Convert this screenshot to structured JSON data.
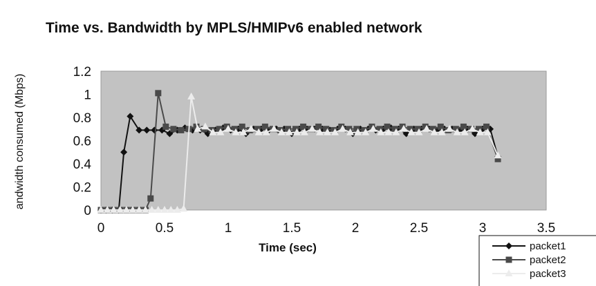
{
  "chart_data": {
    "type": "line",
    "title": "Time vs. Bandwidth by MPLS/HMIPv6 enabled network",
    "xlabel": "Time (sec)",
    "ylabel": "andwidth consumed (Mbps)",
    "xlim": [
      0,
      3.5
    ],
    "ylim": [
      0,
      1.2
    ],
    "xticks": [
      "0",
      "0.5",
      "1",
      "1.5",
      "2",
      "2.5",
      "3",
      "3.5"
    ],
    "yticks": [
      "0",
      "0.2",
      "0.4",
      "0.6",
      "0.8",
      "1",
      "1.2"
    ],
    "grid": false,
    "legend_position": "bottom-right",
    "plot_background": "#c2c2c2",
    "series": [
      {
        "name": "packet1",
        "color": "#111111",
        "marker": "diamond",
        "x": [
          0,
          0.04,
          0.09,
          0.14,
          0.18,
          0.23,
          0.3,
          0.36,
          0.42,
          0.48,
          0.54,
          0.6,
          0.66,
          0.72,
          0.78,
          0.84,
          0.9,
          0.96,
          1.02,
          1.08,
          1.14,
          1.2,
          1.26,
          1.32,
          1.38,
          1.44,
          1.5,
          1.56,
          1.62,
          1.68,
          1.74,
          1.8,
          1.86,
          1.92,
          1.98,
          2.04,
          2.1,
          2.16,
          2.22,
          2.28,
          2.34,
          2.4,
          2.46,
          2.52,
          2.58,
          2.64,
          2.7,
          2.76,
          2.82,
          2.88,
          2.94,
          3.0,
          3.06,
          3.12
        ],
        "y": [
          0,
          0,
          0,
          0,
          0.5,
          0.81,
          0.69,
          0.69,
          0.69,
          0.69,
          0.66,
          0.69,
          0.71,
          0.69,
          0.69,
          0.66,
          0.69,
          0.71,
          0.69,
          0.7,
          0.66,
          0.7,
          0.7,
          0.69,
          0.7,
          0.7,
          0.66,
          0.7,
          0.7,
          0.7,
          0.7,
          0.69,
          0.7,
          0.7,
          0.66,
          0.7,
          0.7,
          0.69,
          0.7,
          0.71,
          0.7,
          0.66,
          0.7,
          0.7,
          0.7,
          0.69,
          0.7,
          0.7,
          0.69,
          0.7,
          0.66,
          0.7,
          0.7,
          0.46
        ]
      },
      {
        "name": "packet2",
        "color": "#4a4a4a",
        "marker": "square",
        "x": [
          0,
          0.05,
          0.1,
          0.15,
          0.2,
          0.25,
          0.3,
          0.35,
          0.39,
          0.45,
          0.51,
          0.57,
          0.63,
          0.69,
          0.75,
          0.81,
          0.87,
          0.93,
          0.99,
          1.05,
          1.11,
          1.17,
          1.23,
          1.29,
          1.35,
          1.41,
          1.47,
          1.53,
          1.59,
          1.65,
          1.71,
          1.77,
          1.83,
          1.89,
          1.95,
          2.01,
          2.07,
          2.13,
          2.19,
          2.25,
          2.31,
          2.37,
          2.43,
          2.49,
          2.55,
          2.61,
          2.67,
          2.73,
          2.79,
          2.85,
          2.91,
          2.97,
          3.03,
          3.12
        ],
        "y": [
          0,
          0,
          0,
          0,
          0,
          0,
          0,
          0,
          0.1,
          1.01,
          0.72,
          0.7,
          0.69,
          0.7,
          0.72,
          0.7,
          0.69,
          0.7,
          0.72,
          0.7,
          0.72,
          0.69,
          0.7,
          0.72,
          0.7,
          0.69,
          0.7,
          0.7,
          0.72,
          0.7,
          0.72,
          0.7,
          0.69,
          0.72,
          0.7,
          0.7,
          0.69,
          0.72,
          0.7,
          0.72,
          0.7,
          0.72,
          0.7,
          0.7,
          0.72,
          0.7,
          0.72,
          0.69,
          0.7,
          0.72,
          0.7,
          0.7,
          0.72,
          0.44
        ]
      },
      {
        "name": "packet3",
        "color": "#ececec",
        "marker": "triangle",
        "x": [
          0,
          0.05,
          0.1,
          0.15,
          0.2,
          0.25,
          0.3,
          0.35,
          0.4,
          0.45,
          0.5,
          0.55,
          0.6,
          0.65,
          0.71,
          0.76,
          0.82,
          0.88,
          0.94,
          1.0,
          1.06,
          1.12,
          1.18,
          1.24,
          1.3,
          1.36,
          1.42,
          1.48,
          1.54,
          1.6,
          1.66,
          1.72,
          1.78,
          1.84,
          1.9,
          1.96,
          2.02,
          2.08,
          2.14,
          2.2,
          2.26,
          2.32,
          2.38,
          2.44,
          2.5,
          2.56,
          2.62,
          2.68,
          2.74,
          2.8,
          2.86,
          2.92,
          2.98,
          3.04,
          3.12
        ],
        "y": [
          0,
          0,
          0,
          0,
          0,
          0,
          0,
          0,
          0,
          0,
          0,
          0,
          0,
          0.01,
          0.98,
          0.7,
          0.72,
          0.67,
          0.67,
          0.7,
          0.67,
          0.67,
          0.7,
          0.67,
          0.67,
          0.7,
          0.67,
          0.67,
          0.67,
          0.67,
          0.7,
          0.67,
          0.67,
          0.67,
          0.7,
          0.67,
          0.67,
          0.67,
          0.7,
          0.67,
          0.67,
          0.67,
          0.7,
          0.67,
          0.67,
          0.7,
          0.67,
          0.67,
          0.7,
          0.67,
          0.67,
          0.7,
          0.67,
          0.67,
          0.47
        ]
      }
    ]
  }
}
